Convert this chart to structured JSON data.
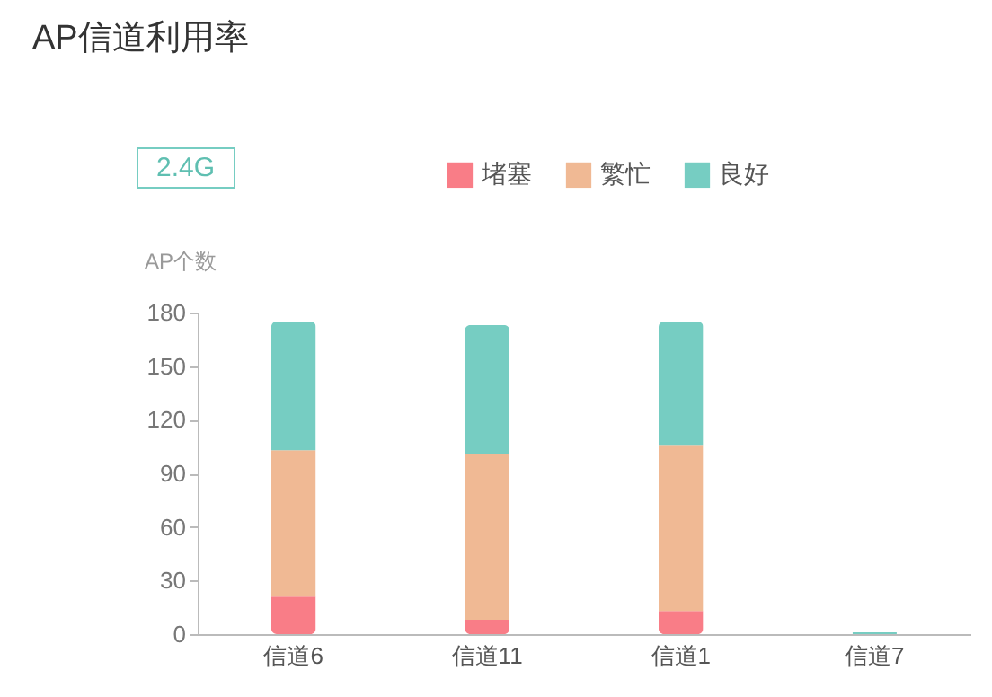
{
  "chart_data": {
    "type": "bar",
    "title": "AP信道利用率",
    "ylabel": "AP个数",
    "annotations": [
      "2.4G"
    ],
    "categories": [
      "信道6",
      "信道11",
      "信道1",
      "信道7"
    ],
    "stacked": true,
    "series": [
      {
        "name": "堵塞",
        "color": "#f97d87",
        "values": [
          21,
          8,
          13,
          0
        ]
      },
      {
        "name": "繁忙",
        "color": "#f0b994",
        "values": [
          82,
          93,
          93,
          0
        ]
      },
      {
        "name": "良好",
        "color": "#76cdc2",
        "values": [
          72,
          72,
          69,
          1
        ]
      }
    ],
    "ylim": [
      0,
      180
    ],
    "yticks": [
      0,
      30,
      60,
      90,
      120,
      150,
      180
    ],
    "grid": false,
    "legend": "top"
  }
}
